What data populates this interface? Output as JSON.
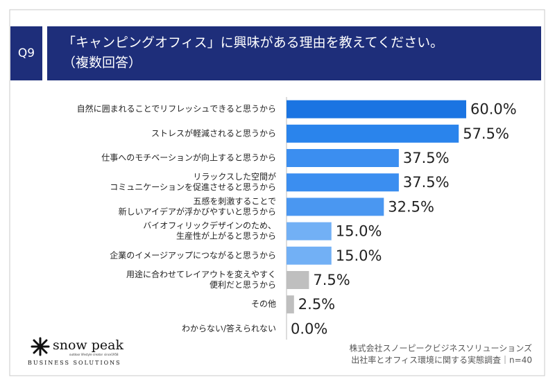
{
  "question": "Q9",
  "title_lines": [
    "「キャンピングオフィス」に興味がある理由を教えてください。",
    "（複数回答）"
  ],
  "chart_data": {
    "type": "bar",
    "orientation": "horizontal",
    "categories": [
      [
        "自然に囲まれることでリフレッシュできると思うから"
      ],
      [
        "ストレスが軽減されると思うから"
      ],
      [
        "仕事へのモチベーションが向上すると思うから"
      ],
      [
        "リラックスした空間が",
        "コミュニケーションを促進させると思うから"
      ],
      [
        "五感を刺激することで",
        "新しいアイデアが浮かびやすいと思うから"
      ],
      [
        "バイオフィリックデザインのため、",
        "生産性が上がると思うから"
      ],
      [
        "企業のイメージアップにつながると思うから"
      ],
      [
        "用途に合わせてレイアウトを変えやすく",
        "便利だと思うから"
      ],
      [
        "その他"
      ],
      [
        "わからない/答えられない"
      ]
    ],
    "values": [
      60,
      57.5,
      37.5,
      37.5,
      32.5,
      15,
      15,
      7.5,
      2.5,
      0
    ],
    "value_labels": [
      "60.0%",
      "57.5%",
      "37.5%",
      "37.5%",
      "32.5%",
      "15.0%",
      "15.0%",
      "7.5%",
      "2.5%",
      "0.0%"
    ],
    "colors": [
      "#1a74e2",
      "#2a84ec",
      "#3b8ef0",
      "#3b8ef0",
      "#4a97f1",
      "#72b0f5",
      "#72b0f5",
      "#bfbfbf",
      "#bfbfbf",
      "#bfbfbf"
    ],
    "xlim": [
      0,
      60
    ]
  },
  "logo": {
    "name": "snow peak",
    "tagline": "outdoor lifestyle creator",
    "since": "since1958",
    "division": "BUSINESS SOLUTIONS"
  },
  "source_lines": [
    "株式会社スノーピークビジネスソリューションズ",
    "出社率とオフィス環境に関する実態調査｜n=40"
  ]
}
